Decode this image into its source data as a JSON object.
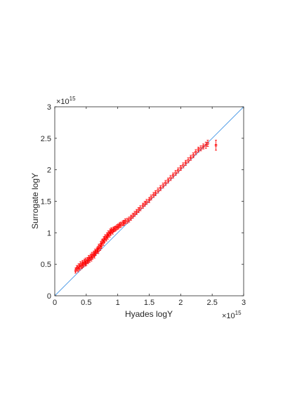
{
  "chart_data": {
    "type": "scatter",
    "title": "",
    "xlabel": "Hyades logY",
    "ylabel": "Surrogate logY",
    "xlim": [
      0,
      3
    ],
    "ylim": [
      0,
      3
    ],
    "x_ticks": [
      "0",
      "0.5",
      "1",
      "1.5",
      "2",
      "2.5",
      "3"
    ],
    "y_ticks": [
      "0",
      "0.5",
      "1",
      "1.5",
      "2",
      "2.5",
      "3"
    ],
    "x_exponent": "×10",
    "x_exponent_power": "15",
    "y_exponent": "×10",
    "y_exponent_power": "15",
    "scale_factor": 1000000000000000.0,
    "grid": false,
    "box": true,
    "colors": {
      "points": "#ff0000",
      "reference_line": "#4d9be6",
      "axes": "#262626"
    },
    "reference_line": {
      "x": [
        0,
        3
      ],
      "y": [
        0,
        3
      ]
    },
    "series": [
      {
        "marker": "square",
        "error_bars": "vertical",
        "points": [
          {
            "x": 0.33,
            "y": 0.4,
            "e": 0.04
          },
          {
            "x": 0.35,
            "y": 0.44,
            "e": 0.04
          },
          {
            "x": 0.37,
            "y": 0.42,
            "e": 0.04
          },
          {
            "x": 0.38,
            "y": 0.47,
            "e": 0.04
          },
          {
            "x": 0.4,
            "y": 0.45,
            "e": 0.04
          },
          {
            "x": 0.41,
            "y": 0.5,
            "e": 0.04
          },
          {
            "x": 0.43,
            "y": 0.47,
            "e": 0.04
          },
          {
            "x": 0.44,
            "y": 0.52,
            "e": 0.04
          },
          {
            "x": 0.45,
            "y": 0.49,
            "e": 0.04
          },
          {
            "x": 0.47,
            "y": 0.54,
            "e": 0.04
          },
          {
            "x": 0.48,
            "y": 0.51,
            "e": 0.04
          },
          {
            "x": 0.49,
            "y": 0.56,
            "e": 0.04
          },
          {
            "x": 0.5,
            "y": 0.52,
            "e": 0.04
          },
          {
            "x": 0.52,
            "y": 0.57,
            "e": 0.04
          },
          {
            "x": 0.53,
            "y": 0.55,
            "e": 0.04
          },
          {
            "x": 0.54,
            "y": 0.6,
            "e": 0.04
          },
          {
            "x": 0.55,
            "y": 0.57,
            "e": 0.04
          },
          {
            "x": 0.57,
            "y": 0.62,
            "e": 0.04
          },
          {
            "x": 0.58,
            "y": 0.59,
            "e": 0.04
          },
          {
            "x": 0.59,
            "y": 0.65,
            "e": 0.04
          },
          {
            "x": 0.6,
            "y": 0.62,
            "e": 0.04
          },
          {
            "x": 0.62,
            "y": 0.67,
            "e": 0.04
          },
          {
            "x": 0.63,
            "y": 0.64,
            "e": 0.04
          },
          {
            "x": 0.64,
            "y": 0.7,
            "e": 0.04
          },
          {
            "x": 0.65,
            "y": 0.68,
            "e": 0.04
          },
          {
            "x": 0.67,
            "y": 0.72,
            "e": 0.04
          },
          {
            "x": 0.68,
            "y": 0.74,
            "e": 0.04
          },
          {
            "x": 0.69,
            "y": 0.71,
            "e": 0.04
          },
          {
            "x": 0.7,
            "y": 0.78,
            "e": 0.04
          },
          {
            "x": 0.72,
            "y": 0.76,
            "e": 0.04
          },
          {
            "x": 0.73,
            "y": 0.82,
            "e": 0.04
          },
          {
            "x": 0.74,
            "y": 0.79,
            "e": 0.04
          },
          {
            "x": 0.75,
            "y": 0.86,
            "e": 0.04
          },
          {
            "x": 0.77,
            "y": 0.84,
            "e": 0.04
          },
          {
            "x": 0.78,
            "y": 0.9,
            "e": 0.04
          },
          {
            "x": 0.79,
            "y": 0.88,
            "e": 0.04
          },
          {
            "x": 0.8,
            "y": 0.93,
            "e": 0.04
          },
          {
            "x": 0.82,
            "y": 0.91,
            "e": 0.04
          },
          {
            "x": 0.83,
            "y": 0.96,
            "e": 0.04
          },
          {
            "x": 0.84,
            "y": 0.94,
            "e": 0.04
          },
          {
            "x": 0.85,
            "y": 0.99,
            "e": 0.04
          },
          {
            "x": 0.87,
            "y": 0.97,
            "e": 0.04
          },
          {
            "x": 0.88,
            "y": 1.02,
            "e": 0.04
          },
          {
            "x": 0.89,
            "y": 1.0,
            "e": 0.04
          },
          {
            "x": 0.9,
            "y": 1.04,
            "e": 0.04
          },
          {
            "x": 0.92,
            "y": 1.02,
            "e": 0.04
          },
          {
            "x": 0.93,
            "y": 1.05,
            "e": 0.04
          },
          {
            "x": 0.95,
            "y": 1.06,
            "e": 0.04
          },
          {
            "x": 0.97,
            "y": 1.07,
            "e": 0.04
          },
          {
            "x": 0.99,
            "y": 1.09,
            "e": 0.04
          },
          {
            "x": 1.01,
            "y": 1.1,
            "e": 0.04
          },
          {
            "x": 1.03,
            "y": 1.12,
            "e": 0.04
          },
          {
            "x": 1.05,
            "y": 1.13,
            "e": 0.04
          },
          {
            "x": 1.08,
            "y": 1.15,
            "e": 0.04
          },
          {
            "x": 1.1,
            "y": 1.16,
            "e": 0.04
          },
          {
            "x": 1.12,
            "y": 1.18,
            "e": 0.04
          },
          {
            "x": 1.15,
            "y": 1.19,
            "e": 0.04
          },
          {
            "x": 1.18,
            "y": 1.21,
            "e": 0.04
          },
          {
            "x": 1.21,
            "y": 1.24,
            "e": 0.04
          },
          {
            "x": 1.24,
            "y": 1.27,
            "e": 0.04
          },
          {
            "x": 1.27,
            "y": 1.3,
            "e": 0.04
          },
          {
            "x": 1.3,
            "y": 1.33,
            "e": 0.04
          },
          {
            "x": 1.33,
            "y": 1.36,
            "e": 0.04
          },
          {
            "x": 1.36,
            "y": 1.39,
            "e": 0.04
          },
          {
            "x": 1.4,
            "y": 1.43,
            "e": 0.04
          },
          {
            "x": 1.43,
            "y": 1.46,
            "e": 0.04
          },
          {
            "x": 1.46,
            "y": 1.49,
            "e": 0.04
          },
          {
            "x": 1.5,
            "y": 1.52,
            "e": 0.04
          },
          {
            "x": 1.53,
            "y": 1.56,
            "e": 0.04
          },
          {
            "x": 1.57,
            "y": 1.6,
            "e": 0.04
          },
          {
            "x": 1.6,
            "y": 1.63,
            "e": 0.04
          },
          {
            "x": 1.64,
            "y": 1.67,
            "e": 0.04
          },
          {
            "x": 1.68,
            "y": 1.71,
            "e": 0.04
          },
          {
            "x": 1.72,
            "y": 1.75,
            "e": 0.04
          },
          {
            "x": 1.76,
            "y": 1.79,
            "e": 0.04
          },
          {
            "x": 1.8,
            "y": 1.83,
            "e": 0.04
          },
          {
            "x": 1.84,
            "y": 1.87,
            "e": 0.04
          },
          {
            "x": 1.88,
            "y": 1.91,
            "e": 0.04
          },
          {
            "x": 1.92,
            "y": 1.95,
            "e": 0.04
          },
          {
            "x": 1.96,
            "y": 1.99,
            "e": 0.04
          },
          {
            "x": 2.0,
            "y": 2.03,
            "e": 0.04
          },
          {
            "x": 2.04,
            "y": 2.07,
            "e": 0.04
          },
          {
            "x": 2.08,
            "y": 2.11,
            "e": 0.04
          },
          {
            "x": 2.12,
            "y": 2.15,
            "e": 0.04
          },
          {
            "x": 2.16,
            "y": 2.19,
            "e": 0.04
          },
          {
            "x": 2.2,
            "y": 2.23,
            "e": 0.04
          },
          {
            "x": 2.24,
            "y": 2.28,
            "e": 0.04
          },
          {
            "x": 2.28,
            "y": 2.32,
            "e": 0.04
          },
          {
            "x": 2.32,
            "y": 2.34,
            "e": 0.04
          },
          {
            "x": 2.36,
            "y": 2.37,
            "e": 0.04
          },
          {
            "x": 2.4,
            "y": 2.39,
            "e": 0.05
          },
          {
            "x": 2.43,
            "y": 2.42,
            "e": 0.05
          },
          {
            "x": 2.56,
            "y": 2.39,
            "e": 0.08
          }
        ]
      }
    ]
  }
}
